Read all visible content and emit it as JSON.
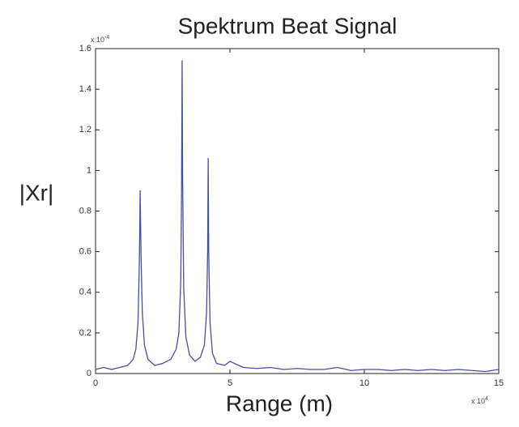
{
  "chart_data": {
    "type": "line",
    "title": "Spektrum Beat Signal",
    "x_label": "Range (m)",
    "y_label": "|Xr|",
    "x_multiplier": {
      "base": "x 10",
      "exponent": "4"
    },
    "y_multiplier": {
      "base": "x 10",
      "exponent": "-4"
    },
    "xlim": [
      0,
      15
    ],
    "xticks": [
      0,
      5,
      10,
      15
    ],
    "ylim": [
      0,
      1.6
    ],
    "yticks": [
      0,
      0.2,
      0.4,
      0.6,
      0.8,
      1,
      1.2,
      1.4,
      1.6
    ],
    "grid": false,
    "series": [
      {
        "color": "#4b4ba8",
        "x": [
          0,
          0.3,
          0.6,
          0.9,
          1.2,
          1.4,
          1.5,
          1.58,
          1.63,
          1.66,
          1.69,
          1.74,
          1.82,
          1.95,
          2.2,
          2.5,
          2.8,
          3.0,
          3.1,
          3.17,
          3.2,
          3.22,
          3.24,
          3.28,
          3.36,
          3.5,
          3.7,
          3.9,
          4.05,
          4.13,
          4.17,
          4.19,
          4.21,
          4.26,
          4.35,
          4.5,
          4.8,
          5.0,
          5.5,
          6,
          6.5,
          7,
          7.5,
          8,
          8.5,
          9,
          9.5,
          10,
          10.5,
          11,
          11.5,
          12,
          12.5,
          13,
          13.5,
          14,
          14.5,
          15
        ],
        "values": [
          0.02,
          0.03,
          0.02,
          0.03,
          0.04,
          0.07,
          0.12,
          0.25,
          0.55,
          0.9,
          0.6,
          0.3,
          0.14,
          0.07,
          0.04,
          0.05,
          0.07,
          0.12,
          0.2,
          0.45,
          0.9,
          1.54,
          0.95,
          0.42,
          0.18,
          0.09,
          0.06,
          0.08,
          0.14,
          0.3,
          0.6,
          1.06,
          0.6,
          0.25,
          0.1,
          0.05,
          0.04,
          0.06,
          0.03,
          0.025,
          0.03,
          0.02,
          0.025,
          0.02,
          0.02,
          0.03,
          0.015,
          0.02,
          0.02,
          0.015,
          0.02,
          0.015,
          0.02,
          0.015,
          0.02,
          0.015,
          0.01,
          0.02
        ]
      }
    ]
  }
}
